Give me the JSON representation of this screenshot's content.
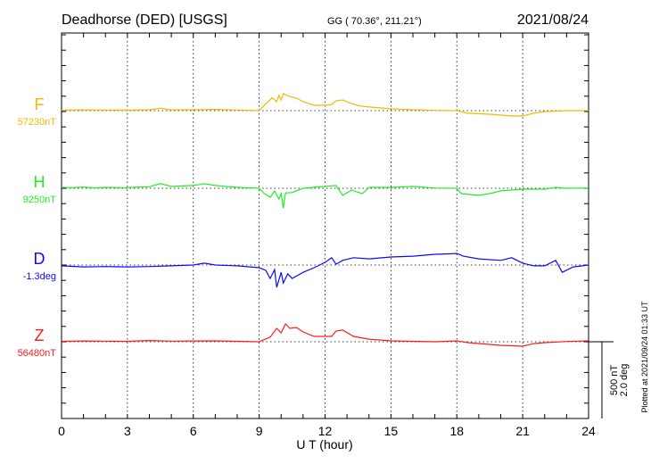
{
  "header": {
    "station": "Deadhorse (DED)  [USGS]",
    "coords": "GG ( 70.36°, 211.21°)",
    "date": "2021/08/24"
  },
  "footer": {
    "plotted": "Plotted at 2021/09/24 01:33 UT",
    "scale_nt": "500 nT",
    "scale_deg": "2.0 deg"
  },
  "chart_data": {
    "type": "line",
    "title": "Deadhorse (DED)  [USGS]",
    "xlabel": "U T (hour)",
    "xlim": [
      0,
      24
    ],
    "xticks": [
      "0",
      "3",
      "6",
      "9",
      "12",
      "15",
      "18",
      "21",
      "24"
    ],
    "grid": "dotted vertical every 3 h, dotted baseline per series",
    "scale": {
      "nT_per_bar": 500,
      "deg_per_bar": 2.0
    },
    "series": [
      {
        "name": "F",
        "baseline_label": "57230nT",
        "color": "#f5b800",
        "unit": "nT",
        "points": [
          [
            0,
            3
          ],
          [
            1,
            5
          ],
          [
            2,
            4
          ],
          [
            3,
            3
          ],
          [
            4,
            6
          ],
          [
            4.5,
            15
          ],
          [
            5,
            5
          ],
          [
            6,
            6
          ],
          [
            7,
            8
          ],
          [
            8,
            4
          ],
          [
            9,
            0
          ],
          [
            9.3,
            45
          ],
          [
            9.6,
            85
          ],
          [
            9.8,
            58
          ],
          [
            9.9,
            100
          ],
          [
            10,
            70
          ],
          [
            10.1,
            110
          ],
          [
            10.4,
            92
          ],
          [
            10.7,
            82
          ],
          [
            11,
            58
          ],
          [
            11.5,
            35
          ],
          [
            12,
            35
          ],
          [
            12.3,
            40
          ],
          [
            12.5,
            64
          ],
          [
            12.8,
            70
          ],
          [
            13.2,
            46
          ],
          [
            13.6,
            30
          ],
          [
            14,
            24
          ],
          [
            15,
            12
          ],
          [
            16,
            6
          ],
          [
            17,
            2
          ],
          [
            18,
            0
          ],
          [
            18.5,
            -17
          ],
          [
            19.5,
            -23
          ],
          [
            20.5,
            -35
          ],
          [
            21,
            -35
          ],
          [
            21.5,
            -17
          ],
          [
            22,
            -6
          ],
          [
            23,
            0
          ],
          [
            24,
            0
          ]
        ]
      },
      {
        "name": "H",
        "baseline_label": "9250nT",
        "color": "#22ee22",
        "unit": "nT",
        "points": [
          [
            0,
            6
          ],
          [
            0.5,
            4
          ],
          [
            1,
            8
          ],
          [
            1.5,
            3
          ],
          [
            2,
            6
          ],
          [
            3,
            4
          ],
          [
            3.5,
            8
          ],
          [
            4,
            10
          ],
          [
            4.5,
            30
          ],
          [
            5,
            12
          ],
          [
            6,
            18
          ],
          [
            6.5,
            30
          ],
          [
            7,
            18
          ],
          [
            8,
            6
          ],
          [
            9,
            0
          ],
          [
            9.2,
            -30
          ],
          [
            9.5,
            -58
          ],
          [
            9.7,
            -18
          ],
          [
            9.9,
            -70
          ],
          [
            10,
            -35
          ],
          [
            10.1,
            -128
          ],
          [
            10.2,
            -30
          ],
          [
            10.5,
            -28
          ],
          [
            11,
            0
          ],
          [
            12,
            12
          ],
          [
            12.5,
            18
          ],
          [
            12.8,
            -46
          ],
          [
            13.2,
            -12
          ],
          [
            13.7,
            -35
          ],
          [
            14,
            6
          ],
          [
            15,
            6
          ],
          [
            16,
            12
          ],
          [
            17,
            2
          ],
          [
            18,
            0
          ],
          [
            18.2,
            -35
          ],
          [
            19,
            -46
          ],
          [
            19.5,
            -35
          ],
          [
            20,
            -17
          ],
          [
            21,
            -6
          ],
          [
            22,
            -6
          ],
          [
            22.5,
            6
          ],
          [
            23,
            0
          ],
          [
            24,
            2
          ]
        ]
      },
      {
        "name": "D",
        "baseline_label": "-1.3deg",
        "color": "#0a0aff",
        "unit": "deg",
        "points": [
          [
            0,
            -0.02
          ],
          [
            1,
            -0.05
          ],
          [
            2,
            -0.04
          ],
          [
            3,
            -0.05
          ],
          [
            4,
            -0.04
          ],
          [
            5,
            -0.02
          ],
          [
            6,
            0
          ],
          [
            6.5,
            0.05
          ],
          [
            7,
            0
          ],
          [
            8,
            -0.02
          ],
          [
            9,
            -0.07
          ],
          [
            9.3,
            -0.14
          ],
          [
            9.5,
            -0.35
          ],
          [
            9.7,
            -0.12
          ],
          [
            9.8,
            -0.58
          ],
          [
            10,
            -0.19
          ],
          [
            10.1,
            -0.47
          ],
          [
            10.3,
            -0.23
          ],
          [
            10.5,
            -0.35
          ],
          [
            11,
            -0.19
          ],
          [
            11.5,
            -0.07
          ],
          [
            12,
            0.07
          ],
          [
            12.3,
            0.19
          ],
          [
            12.5,
            0.02
          ],
          [
            12.8,
            0.12
          ],
          [
            13.3,
            0.19
          ],
          [
            14,
            0.16
          ],
          [
            15,
            0.21
          ],
          [
            16,
            0.23
          ],
          [
            17,
            0.28
          ],
          [
            18,
            0.3
          ],
          [
            18.3,
            0.23
          ],
          [
            19,
            0.16
          ],
          [
            20,
            0.12
          ],
          [
            20.5,
            0.19
          ],
          [
            21,
            0.05
          ],
          [
            21.5,
            -0.02
          ],
          [
            22,
            -0.02
          ],
          [
            22.5,
            0.12
          ],
          [
            22.8,
            -0.19
          ],
          [
            23.3,
            -0.05
          ],
          [
            24,
            0
          ]
        ]
      },
      {
        "name": "Z",
        "baseline_label": "56480nT",
        "color": "#ff1a1a",
        "unit": "nT",
        "points": [
          [
            0,
            3
          ],
          [
            1,
            5
          ],
          [
            2,
            4
          ],
          [
            3,
            3
          ],
          [
            4,
            8
          ],
          [
            5,
            4
          ],
          [
            6,
            5
          ],
          [
            7,
            6
          ],
          [
            8,
            3
          ],
          [
            9,
            0
          ],
          [
            9.5,
            30
          ],
          [
            9.8,
            87
          ],
          [
            10,
            58
          ],
          [
            10.2,
            116
          ],
          [
            10.4,
            87
          ],
          [
            10.7,
            93
          ],
          [
            11,
            64
          ],
          [
            11.5,
            35
          ],
          [
            12,
            35
          ],
          [
            12.3,
            35
          ],
          [
            12.5,
            70
          ],
          [
            12.8,
            76
          ],
          [
            13.3,
            35
          ],
          [
            14,
            17
          ],
          [
            15,
            6
          ],
          [
            17,
            0
          ],
          [
            18,
            6
          ],
          [
            18.5,
            -6
          ],
          [
            20,
            -23
          ],
          [
            21,
            -29
          ],
          [
            21.5,
            -12
          ],
          [
            22,
            -6
          ],
          [
            23,
            2
          ],
          [
            24,
            6
          ]
        ]
      }
    ]
  }
}
